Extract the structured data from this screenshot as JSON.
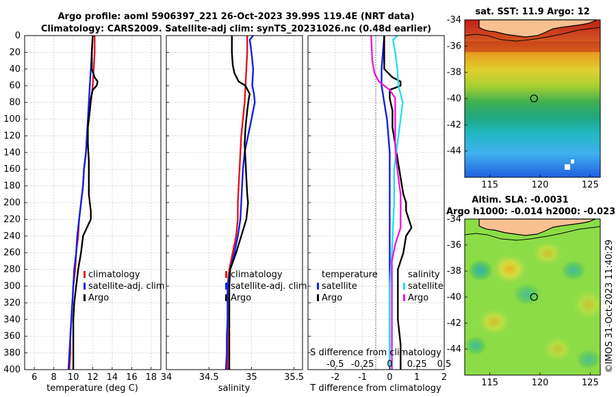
{
  "header": {
    "title_line1": "Argo profile: aoml 5906397_221 26-Oct-2023 39.99S 119.4E (NRT data)",
    "title_line2": "Climatology: CARS2009. Satellite-adj clim: synTS_20231026.nc (0.48d earlier)"
  },
  "watermark": "©IMOS 31-Oct-2023 11:40:29",
  "colors": {
    "red": "#e8101a",
    "blue": "#1020e6",
    "black": "#000000",
    "cyan": "#20e0f0",
    "magenta": "#ee18e0"
  },
  "chart_data": [
    {
      "type": "line",
      "id": "temperature",
      "xlabel": "temperature (deg C)",
      "xlim": [
        5,
        19
      ],
      "xticks": [
        6,
        8,
        10,
        12,
        14,
        16,
        18
      ],
      "ylim": [
        0,
        400
      ],
      "yticks": [
        0,
        20,
        40,
        60,
        80,
        100,
        120,
        140,
        160,
        180,
        200,
        220,
        240,
        260,
        280,
        300,
        320,
        340,
        360,
        380,
        400
      ],
      "legend": [
        "climatology",
        "satellite-adj. clim",
        "Argo"
      ],
      "series": [
        {
          "name": "climatology",
          "color": "red",
          "depth": [
            0,
            20,
            40,
            60,
            80,
            100,
            120,
            140,
            160,
            180,
            200,
            220,
            240,
            260,
            280,
            300,
            320,
            340,
            360,
            380,
            400
          ],
          "values": [
            12.2,
            12.2,
            12.1,
            12.0,
            11.8,
            11.6,
            11.4,
            11.3,
            11.1,
            11.0,
            10.8,
            10.6,
            10.5,
            10.3,
            10.2,
            10.0,
            9.9,
            9.8,
            9.7,
            9.7,
            9.6
          ]
        },
        {
          "name": "satellite-adj. clim",
          "color": "blue",
          "depth": [
            0,
            20,
            40,
            60,
            80,
            100,
            120,
            140,
            160,
            180,
            200,
            220,
            240,
            260,
            280,
            300,
            320,
            340,
            360,
            380,
            400
          ],
          "values": [
            12.0,
            11.9,
            11.8,
            11.7,
            11.6,
            11.5,
            11.4,
            11.3,
            11.1,
            11.0,
            10.8,
            10.6,
            10.4,
            10.3,
            10.1,
            10.0,
            9.9,
            9.8,
            9.7,
            9.6,
            9.5
          ]
        },
        {
          "name": "Argo",
          "color": "black",
          "depth": [
            0,
            20,
            40,
            50,
            55,
            60,
            65,
            75,
            90,
            110,
            130,
            150,
            170,
            190,
            200,
            210,
            220,
            230,
            240,
            260,
            280,
            300,
            320,
            340,
            360,
            380,
            400
          ],
          "values": [
            12.0,
            11.9,
            11.9,
            12.2,
            12.5,
            12.4,
            12.0,
            11.8,
            11.7,
            11.5,
            11.5,
            11.6,
            11.6,
            11.6,
            11.7,
            11.8,
            11.8,
            11.4,
            11.0,
            10.8,
            10.5,
            10.3,
            10.1,
            10.0,
            10.0,
            10.0,
            10.0
          ]
        }
      ]
    },
    {
      "type": "line",
      "id": "salinity",
      "xlabel": "salinity",
      "xlim": [
        34,
        35.6
      ],
      "xticks": [
        34,
        34.5,
        35,
        35.5
      ],
      "xticklabels": [
        "34",
        "34.5",
        "35",
        "35.5"
      ],
      "ylim": [
        0,
        400
      ],
      "legend": [
        "climatology",
        "satellite-adj. clim",
        "Argo"
      ],
      "series": [
        {
          "name": "climatology",
          "color": "red",
          "depth": [
            0,
            20,
            40,
            60,
            80,
            100,
            120,
            140,
            160,
            180,
            200,
            220,
            240,
            260,
            280,
            300,
            320,
            340,
            360,
            380,
            400
          ],
          "values": [
            34.95,
            34.95,
            34.94,
            34.93,
            34.92,
            34.9,
            34.88,
            34.87,
            34.86,
            34.85,
            34.84,
            34.84,
            34.82,
            34.78,
            34.74,
            34.72,
            34.72,
            34.72,
            34.72,
            34.72,
            34.72
          ]
        },
        {
          "name": "satellite-adj. clim",
          "color": "blue",
          "depth": [
            0,
            5,
            20,
            40,
            60,
            70,
            80,
            100,
            120,
            140,
            160,
            180,
            200,
            220,
            240,
            260,
            280,
            300,
            320,
            340,
            360,
            380,
            400
          ],
          "values": [
            35.02,
            34.98,
            35.0,
            35.02,
            35.01,
            35.03,
            35.04,
            35.0,
            34.96,
            34.92,
            34.9,
            34.89,
            34.88,
            34.87,
            34.84,
            34.8,
            34.75,
            34.72,
            34.72,
            34.72,
            34.71,
            34.71,
            34.7
          ]
        },
        {
          "name": "Argo",
          "color": "black",
          "depth": [
            0,
            20,
            35,
            45,
            55,
            60,
            70,
            75,
            90,
            110,
            130,
            150,
            170,
            190,
            200,
            220,
            240,
            260,
            280,
            300,
            320,
            340,
            360,
            380,
            400
          ],
          "values": [
            34.77,
            34.77,
            34.78,
            34.8,
            34.85,
            34.93,
            34.98,
            34.97,
            34.95,
            34.93,
            34.92,
            34.93,
            34.94,
            34.95,
            34.96,
            34.94,
            34.88,
            34.82,
            34.75,
            34.74,
            34.74,
            34.74,
            34.74,
            34.74,
            34.74
          ]
        }
      ]
    },
    {
      "type": "line",
      "id": "differences",
      "xlabel": "T difference from climatology",
      "xlim": [
        -3,
        2
      ],
      "xticks": [
        -2,
        -1,
        0,
        1,
        2
      ],
      "ylim": [
        0,
        400
      ],
      "top_axis": {
        "label": "S difference from climatology",
        "ticks": [
          -0.5,
          -0.25,
          0,
          0.25,
          0.5
        ],
        "ticklabels": [
          "-0.5",
          "-0.25",
          "0",
          "0.25",
          "0.5"
        ]
      },
      "legend": {
        "temperature_title": "temperature",
        "salinity_title": "salinity",
        "entries": [
          "satellite",
          "Argo",
          "satellite",
          "Argo"
        ]
      },
      "series": [
        {
          "name": "temperature satellite",
          "color": "blue",
          "depth": [
            0,
            40,
            60,
            80,
            100,
            140,
            200,
            260,
            300,
            360,
            400
          ],
          "values": [
            -0.2,
            -0.3,
            -0.3,
            -0.2,
            -0.1,
            0,
            0,
            0,
            0,
            0,
            0
          ]
        },
        {
          "name": "temperature Argo",
          "color": "black",
          "depth": [
            0,
            40,
            50,
            55,
            60,
            65,
            75,
            90,
            110,
            130,
            150,
            190,
            200,
            210,
            220,
            230,
            240,
            260,
            280,
            300,
            340,
            370,
            400
          ],
          "values": [
            -0.2,
            -0.2,
            0.1,
            0.4,
            0.4,
            0,
            0,
            0.1,
            0.1,
            0.2,
            0.3,
            0.5,
            0.6,
            0.6,
            0.7,
            0.8,
            0.6,
            0.5,
            0.3,
            0.3,
            0.3,
            0.4,
            0.4
          ]
        },
        {
          "name": "salinity satellite",
          "color": "cyan",
          "depth": [
            0,
            5,
            20,
            40,
            60,
            80,
            100,
            120,
            140,
            160,
            200,
            260,
            300,
            360,
            400
          ],
          "values": [
            0.07,
            0.03,
            0.05,
            0.07,
            0.08,
            0.12,
            0.1,
            0.08,
            0.06,
            0.04,
            0.04,
            0.02,
            0.0,
            0.0,
            0.0
          ]
        },
        {
          "name": "salinity Argo",
          "color": "magenta",
          "depth": [
            0,
            30,
            45,
            55,
            65,
            75,
            100,
            130,
            150,
            170,
            190,
            210,
            230,
            250,
            270,
            300,
            340,
            400
          ],
          "values": [
            -0.17,
            -0.16,
            -0.14,
            -0.1,
            0,
            0.05,
            0.05,
            0.05,
            0.06,
            0.08,
            0.1,
            0.1,
            0.1,
            0.05,
            0.02,
            0.02,
            0.02,
            0.02
          ]
        }
      ]
    },
    {
      "type": "heatmap",
      "id": "sst_map",
      "title": "sat. SST: 11.9 Argo: 12",
      "xlim": [
        112.5,
        126
      ],
      "xticks": [
        115,
        120,
        125
      ],
      "ylim": [
        -46,
        -34
      ],
      "yticks": [
        -34,
        -36,
        -38,
        -40,
        -42,
        -44
      ],
      "marker": {
        "lon": 119.4,
        "lat": -39.99
      }
    },
    {
      "type": "heatmap",
      "id": "sla_map",
      "title_line1": "Altim. SLA: -0.0031",
      "title_line2": "Argo h1000: -0.014 h2000: -0.023",
      "xlim": [
        112.5,
        126
      ],
      "xticks": [
        115,
        120,
        125
      ],
      "ylim": [
        -46,
        -34
      ],
      "yticks": [
        -34,
        -36,
        -38,
        -40,
        -42,
        -44
      ],
      "marker": {
        "lon": 119.4,
        "lat": -39.99
      }
    }
  ]
}
